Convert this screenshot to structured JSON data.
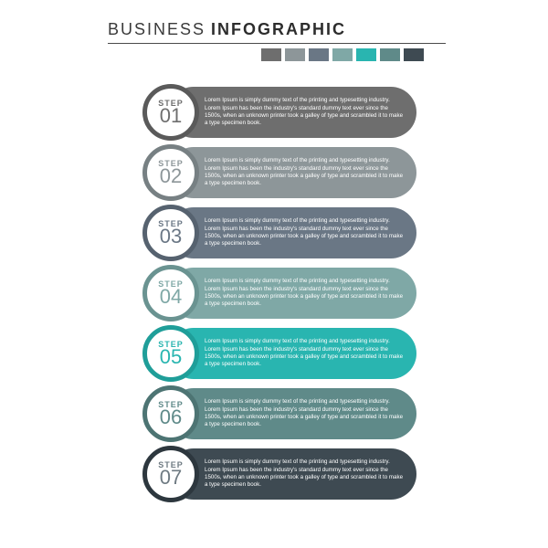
{
  "type": "infographic",
  "background_color": "#ffffff",
  "header": {
    "title_light": "BUSINESS",
    "title_bold": "INFOGRAPHIC",
    "title_light_color": "#3a3a3a",
    "title_bold_color": "#2d2d2d",
    "title_fontsize": 18,
    "rule_color": "#4a4a4a",
    "swatch_colors": [
      "#6e6e6e",
      "#8d9699",
      "#6a7785",
      "#7fa8a6",
      "#29b5b0",
      "#5f8a89",
      "#3e4a52"
    ]
  },
  "step_label": "STEP",
  "step_body_text": "Lorem Ipsum is simply dummy text of the printing and typesetting industry. Lorem Ipsum has been the industry's standard dummy text ever since the 1500s, when an unknown printer took a galley of type and scrambled it to make a type specimen book.",
  "steps": [
    {
      "num": "01",
      "bar_color": "#6e6e6e",
      "ring_color": "#5a5a5a",
      "text_color": "#6e6e6e"
    },
    {
      "num": "02",
      "bar_color": "#8d9699",
      "ring_color": "#778083",
      "text_color": "#8d9699"
    },
    {
      "num": "03",
      "bar_color": "#6a7785",
      "ring_color": "#56626f",
      "text_color": "#6a7785"
    },
    {
      "num": "04",
      "bar_color": "#7fa8a6",
      "ring_color": "#6a9391",
      "text_color": "#7fa8a6"
    },
    {
      "num": "05",
      "bar_color": "#29b5b0",
      "ring_color": "#1f9e99",
      "text_color": "#29b5b0"
    },
    {
      "num": "06",
      "bar_color": "#5f8a89",
      "ring_color": "#4d7473",
      "text_color": "#5f8a89"
    },
    {
      "num": "07",
      "bar_color": "#3e4a52",
      "ring_color": "#2d373e",
      "text_color": "#6e7a82"
    }
  ],
  "layout": {
    "step_height": 56,
    "step_gap": 10,
    "ring_border_width": 5,
    "bar_border_radius": 28
  }
}
